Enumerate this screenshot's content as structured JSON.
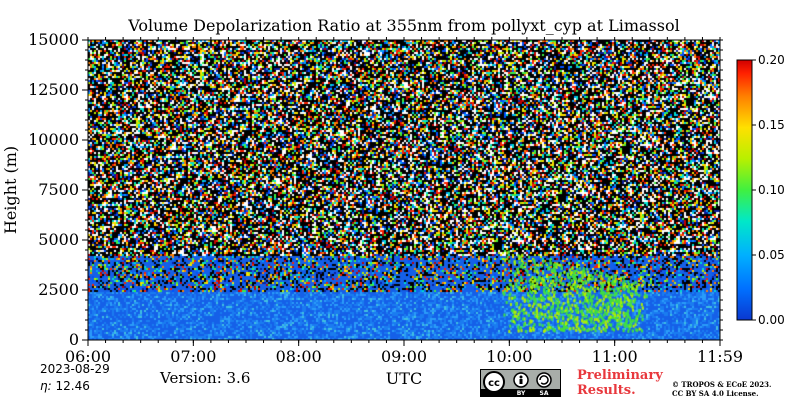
{
  "chart_data": {
    "type": "heatmap",
    "title": "Volume Depolarization Ratio at 355nm from pollyxt_cyp at Limassol",
    "xlabel": "UTC",
    "ylabel": "Height (m)",
    "x_ticks": [
      "06:00",
      "07:00",
      "08:00",
      "09:00",
      "10:00",
      "11:00",
      "11:59"
    ],
    "x_range_hours": [
      6.0,
      11.983
    ],
    "y_ticks": [
      0,
      2500,
      5000,
      7500,
      10000,
      12500,
      15000
    ],
    "ylim": [
      0,
      15000
    ],
    "colorbar": {
      "min": 0.0,
      "max": 0.2,
      "ticks": [
        "0.00",
        "0.05",
        "0.10",
        "0.15",
        "0.20"
      ]
    },
    "layers": [
      {
        "description_ref": "boundary layer",
        "height_top": 3000,
        "value_mean": 0.02
      },
      {
        "description_ref": "aerosol plume",
        "time_start": 10.0,
        "time_end": 11.2,
        "height_bottom": 500,
        "height_top": 4500,
        "value_mean": 0.1
      }
    ]
  },
  "footer": {
    "date": "2023-08-29",
    "eta_label": "η:",
    "eta_value": "12.46",
    "version": "Version: 3.6",
    "preliminary_line1": "Preliminary",
    "preliminary_line2": "Results.",
    "copyright_line1": "© TROPOS & ECoE 2023.",
    "copyright_line2": "CC BY SA 4.0 License.",
    "cc_by": "BY",
    "cc_sa": "SA"
  },
  "colors": {
    "scale": [
      "#0a1e9e",
      "#0050ff",
      "#00a0ff",
      "#00e0d0",
      "#40f040",
      "#c0f000",
      "#ffe000",
      "#ff8000",
      "#ff2000",
      "#c00000"
    ]
  }
}
